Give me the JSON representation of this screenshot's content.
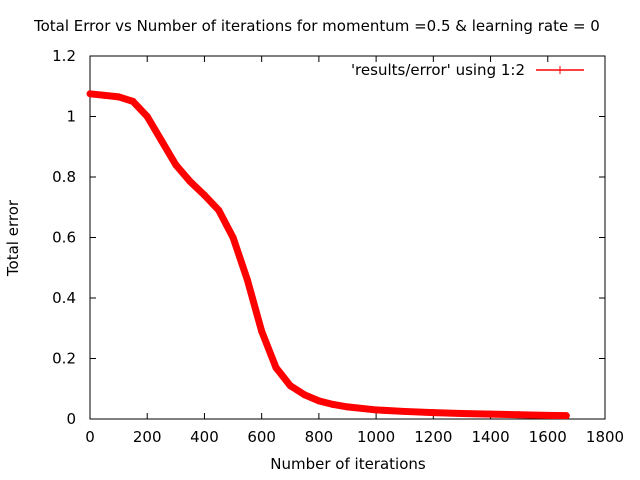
{
  "chart_data": {
    "type": "line",
    "title": "Total Error vs Number of iterations for momentum =0.5 & learning rate = 0",
    "xlabel": "Number of iterations",
    "ylabel": "Total error",
    "xlim": [
      0,
      1800
    ],
    "ylim": [
      0,
      1.2
    ],
    "xticks": [
      0,
      200,
      400,
      600,
      800,
      1000,
      1200,
      1400,
      1600,
      1800
    ],
    "yticks": [
      0,
      0.2,
      0.4,
      0.6,
      0.8,
      1,
      1.2
    ],
    "xtick_labels": [
      "0",
      "200",
      "400",
      "600",
      "800",
      "1000",
      "1200",
      "1400",
      "1600",
      "1800"
    ],
    "ytick_labels": [
      "0",
      "0.2",
      "0.4",
      "0.6",
      "0.8",
      "1",
      "1.2"
    ],
    "legend_position": "top-right",
    "grid": false,
    "series": [
      {
        "name": "'results/error' using 1:2",
        "color": "#ff0000",
        "x": [
          0,
          50,
          100,
          150,
          200,
          250,
          300,
          350,
          400,
          450,
          500,
          550,
          600,
          650,
          700,
          750,
          800,
          850,
          900,
          1000,
          1100,
          1200,
          1300,
          1400,
          1500,
          1600,
          1665
        ],
        "y": [
          1.075,
          1.07,
          1.065,
          1.05,
          1.0,
          0.92,
          0.84,
          0.785,
          0.74,
          0.69,
          0.6,
          0.46,
          0.29,
          0.17,
          0.11,
          0.08,
          0.06,
          0.048,
          0.04,
          0.03,
          0.025,
          0.021,
          0.018,
          0.016,
          0.014,
          0.012,
          0.011
        ]
      }
    ]
  }
}
